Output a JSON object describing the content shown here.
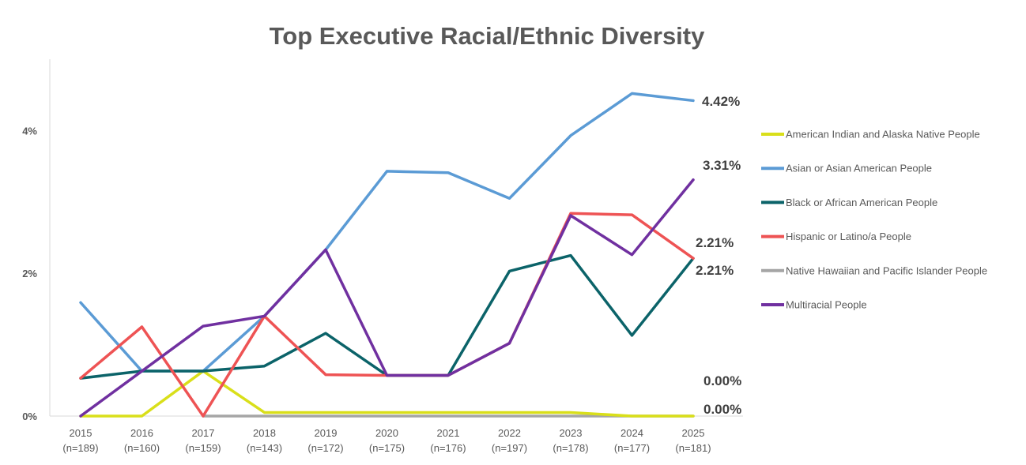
{
  "chart_data": {
    "type": "line",
    "title": "Top Executive Racial/Ethnic Diversity",
    "xlabel": "",
    "ylabel": "",
    "categories": [
      "2015",
      "2016",
      "2017",
      "2018",
      "2019",
      "2020",
      "2021",
      "2022",
      "2023",
      "2024",
      "2025"
    ],
    "category_sublabels": [
      "(n=189)",
      "(n=160)",
      "(n=159)",
      "(n=143)",
      "(n=172)",
      "(n=175)",
      "(n=176)",
      "(n=197)",
      "(n=178)",
      "(n=177)",
      "(n=181)"
    ],
    "ylim": [
      0,
      5
    ],
    "yticks": [
      {
        "value": 0,
        "label": "0%"
      },
      {
        "value": 2,
        "label": "2%"
      },
      {
        "value": 4,
        "label": "4%"
      }
    ],
    "grid": false,
    "legend_position": "right",
    "series": [
      {
        "name": "American Indian and Alaska Native People",
        "color": "#D9DF1A",
        "values": [
          0,
          0,
          0.63,
          0.05,
          0.05,
          0.05,
          0.05,
          0.05,
          0.05,
          0,
          0
        ],
        "end_label": "0.00%"
      },
      {
        "name": "Asian or Asian American People",
        "color": "#5B9BD5",
        "values": [
          1.59,
          0.63,
          0.63,
          1.4,
          2.33,
          3.43,
          3.41,
          3.05,
          3.93,
          4.52,
          4.42
        ],
        "end_label": "4.42%"
      },
      {
        "name": "Black or African American People",
        "color": "#0B6369",
        "values": [
          0.53,
          0.63,
          0.63,
          0.7,
          1.16,
          0.57,
          0.57,
          2.03,
          2.25,
          1.13,
          2.21
        ],
        "end_label": "2.21%"
      },
      {
        "name": "Hispanic or Latino/a People",
        "color": "#EE5354",
        "values": [
          0.53,
          1.25,
          0,
          1.4,
          0.58,
          0.57,
          0.57,
          1.02,
          2.84,
          2.82,
          2.21
        ],
        "end_label": "2.21%"
      },
      {
        "name": "Native Hawaiian and Pacific Islander People",
        "color": "#A5A5A5",
        "values": [
          null,
          null,
          0,
          0,
          0,
          0,
          0,
          0,
          0,
          0,
          0
        ],
        "end_label": "0.00%"
      },
      {
        "name": "Multiracial People",
        "color": "#7030A0",
        "values": [
          0,
          0.63,
          1.26,
          1.4,
          2.33,
          0.57,
          0.57,
          1.02,
          2.81,
          2.26,
          3.31
        ],
        "end_label": "3.31%"
      }
    ]
  }
}
